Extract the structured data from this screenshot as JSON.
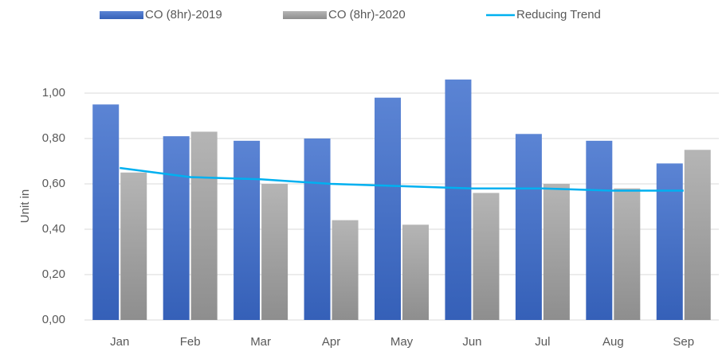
{
  "chart_data": {
    "type": "bar",
    "y_label": "Unit in",
    "categories": [
      "Jan",
      "Feb",
      "Mar",
      "Apr",
      "May",
      "Jun",
      "Jul",
      "Aug",
      "Sep"
    ],
    "series": [
      {
        "name": "CO (8hr)-2019",
        "type": "bar",
        "color": "#4472c4",
        "values": [
          0.95,
          0.81,
          0.79,
          0.8,
          0.98,
          1.06,
          0.82,
          0.79,
          0.69
        ]
      },
      {
        "name": "CO (8hr)-2020",
        "type": "bar",
        "color": "#a5a5a5",
        "values": [
          0.65,
          0.83,
          0.6,
          0.44,
          0.42,
          0.56,
          0.6,
          0.58,
          0.75
        ]
      },
      {
        "name": "Reducing Trend",
        "type": "line",
        "color": "#00b0f0",
        "values": [
          0.67,
          0.63,
          0.62,
          0.6,
          0.59,
          0.58,
          0.58,
          0.57,
          0.57
        ]
      }
    ],
    "ylim": [
      0,
      1.0
    ],
    "yticks": [
      {
        "value": 0,
        "label": "0,00"
      },
      {
        "value": 0.2,
        "label": "0,20"
      },
      {
        "value": 0.4,
        "label": "0,40"
      },
      {
        "value": 0.6,
        "label": "0,60"
      },
      {
        "value": 0.8,
        "label": "0,80"
      },
      {
        "value": 1.0,
        "label": "1,00"
      }
    ],
    "grid": true,
    "legend": "top"
  }
}
